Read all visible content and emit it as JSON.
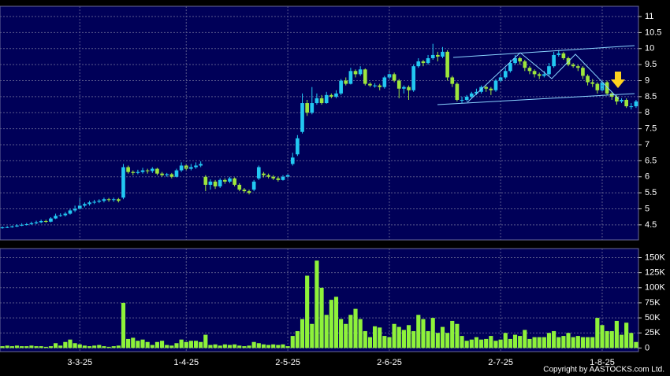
{
  "chart_data": [
    {
      "type": "candlestick",
      "up_color": "#22c8f2",
      "down_color": "#9ee63c",
      "grid": true,
      "ylim": [
        4.03,
        11.32
      ],
      "yticks": [
        4.5,
        5,
        5.5,
        6,
        6.5,
        7,
        7.5,
        8,
        8.5,
        9,
        9.5,
        10,
        10.5,
        11
      ],
      "open": [
        4.4,
        4.42,
        4.43,
        4.45,
        4.48,
        4.5,
        4.52,
        4.55,
        4.58,
        4.62,
        4.6,
        4.7,
        4.78,
        4.8,
        4.85,
        4.95,
        5.0,
        5.1,
        5.15,
        5.2,
        5.22,
        5.25,
        5.3,
        5.28,
        5.3,
        5.35,
        6.3,
        6.15,
        6.12,
        6.15,
        6.2,
        6.18,
        6.25,
        6.1,
        6.05,
        6.08,
        6.0,
        6.2,
        6.35,
        6.25,
        6.3,
        6.35,
        6.0,
        5.75,
        5.85,
        5.7,
        5.9,
        5.85,
        5.95,
        5.75,
        5.6,
        5.55,
        5.6,
        5.95,
        6.1,
        6.05,
        6.0,
        5.95,
        5.9,
        6.0,
        6.4,
        6.7,
        7.4,
        8.3,
        8.0,
        8.3,
        8.45,
        8.3,
        8.55,
        8.5,
        8.6,
        9.0,
        8.9,
        9.3,
        9.2,
        9.35,
        8.9,
        8.85,
        8.85,
        8.8,
        9.1,
        9.2,
        9.0,
        8.75,
        8.8,
        8.7,
        9.45,
        9.6,
        9.55,
        9.7,
        9.8,
        9.75,
        9.9,
        9.1,
        8.9,
        8.4,
        8.4,
        8.5,
        8.6,
        8.65,
        8.8,
        8.75,
        8.7,
        9.0,
        9.1,
        9.3,
        9.55,
        9.7,
        9.6,
        9.4,
        9.3,
        9.2,
        9.15,
        9.2,
        9.45,
        9.8,
        9.85,
        9.7,
        9.5,
        9.45,
        9.4,
        9.15,
        8.95,
        8.9,
        8.7,
        8.95,
        8.6,
        8.5,
        8.35,
        8.4,
        8.2,
        8.2
      ],
      "high": [
        4.45,
        4.46,
        4.48,
        4.52,
        4.55,
        4.56,
        4.6,
        4.63,
        4.66,
        4.66,
        4.74,
        4.85,
        4.86,
        4.9,
        5.0,
        5.1,
        5.35,
        5.2,
        5.25,
        5.28,
        5.3,
        5.35,
        5.34,
        5.35,
        5.34,
        6.4,
        6.35,
        6.2,
        6.22,
        6.28,
        6.25,
        6.3,
        6.28,
        6.15,
        6.12,
        6.12,
        6.25,
        6.45,
        6.4,
        6.4,
        6.45,
        6.48,
        6.05,
        5.92,
        5.9,
        5.95,
        5.95,
        6.0,
        5.98,
        5.8,
        5.65,
        5.6,
        5.9,
        6.35,
        6.15,
        6.1,
        6.05,
        6.0,
        6.05,
        6.1,
        6.75,
        7.3,
        8.6,
        8.4,
        8.8,
        8.6,
        8.55,
        8.65,
        8.6,
        8.7,
        9.05,
        9.1,
        9.4,
        9.35,
        9.45,
        9.38,
        8.95,
        8.92,
        8.9,
        9.15,
        9.3,
        9.25,
        9.05,
        8.85,
        8.85,
        9.5,
        9.7,
        9.65,
        9.8,
        10.15,
        9.9,
        10.05,
        9.95,
        9.15,
        8.95,
        8.5,
        8.55,
        8.65,
        8.75,
        8.85,
        8.85,
        8.8,
        9.05,
        9.2,
        9.4,
        9.65,
        9.8,
        9.75,
        9.65,
        9.45,
        9.35,
        9.25,
        9.3,
        9.55,
        9.9,
        9.95,
        9.9,
        9.75,
        9.55,
        9.5,
        9.45,
        9.2,
        9.05,
        8.95,
        9.0,
        9.0,
        8.65,
        8.55,
        8.45,
        8.45,
        8.3,
        8.4
      ],
      "low": [
        4.38,
        4.4,
        4.41,
        4.43,
        4.46,
        4.48,
        4.5,
        4.52,
        4.55,
        4.56,
        4.58,
        4.68,
        4.75,
        4.76,
        4.82,
        4.9,
        4.98,
        5.05,
        5.1,
        5.15,
        5.18,
        5.2,
        5.22,
        5.22,
        5.2,
        5.3,
        6.1,
        6.05,
        6.08,
        6.1,
        6.1,
        6.12,
        6.05,
        6.0,
        6.0,
        5.95,
        5.98,
        6.15,
        6.2,
        6.2,
        6.25,
        6.3,
        5.55,
        5.6,
        5.62,
        5.65,
        5.78,
        5.8,
        5.7,
        5.55,
        5.5,
        5.45,
        5.55,
        5.9,
        5.98,
        5.95,
        5.9,
        5.85,
        5.88,
        5.95,
        6.35,
        6.65,
        7.35,
        7.9,
        7.95,
        8.25,
        8.25,
        8.28,
        8.45,
        8.45,
        8.55,
        8.85,
        8.88,
        9.1,
        9.15,
        8.85,
        8.8,
        8.78,
        8.7,
        8.75,
        9.05,
        8.95,
        8.45,
        8.6,
        8.4,
        8.65,
        9.4,
        9.45,
        9.5,
        9.65,
        9.6,
        9.7,
        9.0,
        8.8,
        8.35,
        8.3,
        8.35,
        8.45,
        8.55,
        8.6,
        8.65,
        8.55,
        8.65,
        8.95,
        9.05,
        9.25,
        9.5,
        9.5,
        9.3,
        9.2,
        9.1,
        9.05,
        9.1,
        9.15,
        9.4,
        9.75,
        9.65,
        9.45,
        9.4,
        9.3,
        9.05,
        8.85,
        8.8,
        8.6,
        8.65,
        8.55,
        8.4,
        8.25,
        8.3,
        8.15,
        8.1,
        8.15
      ],
      "close": [
        4.42,
        4.43,
        4.45,
        4.48,
        4.5,
        4.52,
        4.55,
        4.58,
        4.62,
        4.6,
        4.7,
        4.78,
        4.8,
        4.85,
        4.95,
        5.0,
        5.1,
        5.15,
        5.2,
        5.22,
        5.25,
        5.3,
        5.28,
        5.3,
        5.25,
        6.3,
        6.15,
        6.12,
        6.15,
        6.2,
        6.18,
        6.25,
        6.1,
        6.05,
        6.08,
        6.0,
        6.2,
        6.35,
        6.25,
        6.3,
        6.35,
        6.4,
        5.75,
        5.85,
        5.7,
        5.9,
        5.85,
        5.95,
        5.75,
        5.6,
        5.55,
        5.5,
        5.85,
        6.3,
        6.05,
        6.0,
        5.95,
        5.9,
        6.0,
        6.05,
        6.6,
        7.2,
        8.3,
        8.0,
        8.3,
        8.45,
        8.3,
        8.55,
        8.5,
        8.6,
        9.0,
        8.9,
        9.3,
        9.2,
        9.35,
        8.9,
        8.85,
        8.85,
        8.8,
        9.1,
        9.2,
        9.0,
        8.75,
        8.8,
        8.7,
        9.45,
        9.6,
        9.55,
        9.7,
        9.8,
        9.75,
        9.9,
        9.1,
        8.9,
        8.4,
        8.4,
        8.5,
        8.6,
        8.65,
        8.8,
        8.75,
        8.7,
        9.0,
        9.1,
        9.3,
        9.55,
        9.7,
        9.6,
        9.4,
        9.3,
        9.2,
        9.15,
        9.2,
        9.45,
        9.8,
        9.85,
        9.7,
        9.5,
        9.45,
        9.4,
        9.15,
        8.95,
        8.9,
        8.7,
        8.95,
        8.6,
        8.5,
        8.35,
        8.4,
        8.2,
        8.2,
        8.35
      ]
    },
    {
      "type": "bar",
      "color": "#8ef23a",
      "grid": true,
      "ylim": [
        -6000,
        165000
      ],
      "yticks": [
        0,
        {
          "value": 25000,
          "label": "25K"
        },
        {
          "value": 50000,
          "label": "50K"
        },
        {
          "value": 75000,
          "label": "75K"
        },
        {
          "value": 100000,
          "label": "100K"
        },
        {
          "value": 125000,
          "label": "125K"
        },
        {
          "value": 150000,
          "label": "150K"
        }
      ],
      "categories": [
        null,
        null,
        null,
        null,
        null,
        null,
        null,
        null,
        null,
        null,
        null,
        null,
        null,
        null,
        null,
        null,
        "3-3-25",
        null,
        null,
        null,
        null,
        null,
        null,
        null,
        null,
        null,
        null,
        null,
        null,
        null,
        null,
        null,
        null,
        null,
        null,
        null,
        null,
        null,
        "1-4-25",
        null,
        null,
        null,
        null,
        null,
        null,
        null,
        null,
        null,
        null,
        null,
        null,
        null,
        null,
        null,
        null,
        null,
        null,
        null,
        null,
        "2-5-25",
        null,
        null,
        null,
        null,
        null,
        null,
        null,
        null,
        null,
        null,
        null,
        null,
        null,
        null,
        null,
        null,
        null,
        null,
        null,
        null,
        "2-6-25",
        null,
        null,
        null,
        null,
        null,
        null,
        null,
        null,
        null,
        null,
        null,
        null,
        null,
        null,
        null,
        null,
        null,
        null,
        null,
        null,
        null,
        null,
        "2-7-25",
        null,
        null,
        null,
        null,
        null,
        null,
        null,
        null,
        null,
        null,
        null,
        null,
        null,
        null,
        null,
        null,
        null,
        null,
        null,
        null,
        "1-8-25",
        null,
        null,
        null,
        null,
        null,
        null,
        null
      ],
      "values": [
        3000,
        4000,
        3000,
        4000,
        3000,
        3000,
        4000,
        3000,
        3000,
        2000,
        3000,
        8000,
        4000,
        10000,
        14000,
        8000,
        6000,
        4000,
        3000,
        4000,
        5000,
        3000,
        2000,
        3000,
        4000,
        75000,
        15000,
        17000,
        12000,
        14000,
        10000,
        5000,
        10000,
        12000,
        5000,
        4000,
        8000,
        14000,
        10000,
        12000,
        12000,
        10000,
        22000,
        5000,
        6000,
        4000,
        6000,
        5000,
        6000,
        4000,
        3000,
        4000,
        10000,
        8000,
        6000,
        5000,
        6000,
        5000,
        6000,
        3000,
        20000,
        28000,
        48000,
        120000,
        40000,
        145000,
        100000,
        55000,
        80000,
        85000,
        48000,
        40000,
        55000,
        65000,
        48000,
        28000,
        18000,
        36000,
        34000,
        20000,
        18000,
        40000,
        35000,
        30000,
        38000,
        28000,
        55000,
        48000,
        28000,
        50000,
        25000,
        35000,
        25000,
        45000,
        40000,
        20000,
        12000,
        14000,
        18000,
        14000,
        15000,
        20000,
        12000,
        14000,
        25000,
        15000,
        22000,
        20000,
        30000,
        15000,
        18000,
        18000,
        18000,
        25000,
        28000,
        18000,
        20000,
        25000,
        18000,
        20000,
        18000,
        18000,
        18000,
        50000,
        38000,
        28000,
        28000,
        45000,
        22000,
        42000,
        25000,
        10000
      ]
    }
  ],
  "copyright": "Copyright by AASTOCKS.com Ltd."
}
